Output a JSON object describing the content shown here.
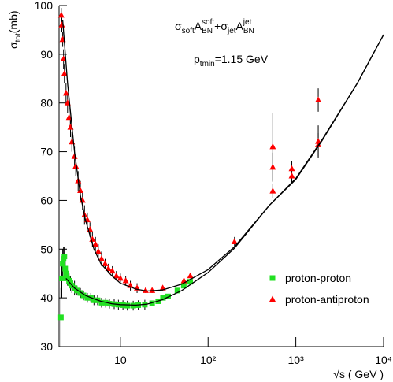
{
  "chart_data": {
    "type": "scatter",
    "xscale": "log",
    "annotations": {
      "formula": [
        "σ",
        "soft",
        "A",
        "BN",
        "soft",
        "+σ",
        "jet",
        "A",
        "BN",
        "jet"
      ],
      "ptmin": [
        "p",
        "tmin",
        "=1.15 GeV"
      ]
    },
    "ylabel": [
      "σ",
      "tot",
      "(mb)"
    ],
    "xlabel": "√s ( GeV )",
    "xlim": [
      2,
      10000
    ],
    "ylim": [
      30,
      100
    ],
    "xticks": [
      10,
      {
        "value": 100,
        "label": "10²"
      },
      {
        "value": 1000,
        "label": "10³"
      },
      {
        "value": 10000,
        "label": "10⁴"
      }
    ],
    "yticks": [
      30,
      40,
      50,
      60,
      70,
      80,
      90,
      100
    ],
    "legend": "lower right",
    "series": [
      {
        "name": "proton-proton",
        "color": "#22e022",
        "marker": "square",
        "x": [
          2.1,
          2.15,
          2.2,
          2.25,
          2.3,
          2.35,
          2.4,
          2.5,
          2.6,
          2.7,
          2.8,
          3.0,
          3.2,
          3.5,
          3.8,
          4.2,
          4.6,
          5.0,
          5.5,
          6.1,
          6.8,
          7.5,
          8.5,
          9.5,
          10.7,
          12,
          14,
          16,
          19,
          23,
          27,
          30.6,
          35,
          44.7,
          52.8,
          62.5
        ],
        "values": [
          36,
          44,
          47,
          48,
          48.5,
          46,
          45,
          44,
          43.5,
          43,
          42.5,
          42,
          41.5,
          41,
          40.5,
          40,
          40,
          39.5,
          39.5,
          39,
          39,
          38.8,
          38.7,
          38.6,
          38.5,
          38.4,
          38.4,
          38.5,
          38.6,
          38.9,
          39.3,
          40,
          40.3,
          41.5,
          42.5,
          43.3
        ],
        "errors": [
          6,
          4,
          3,
          2.5,
          2,
          2,
          1.5,
          1.5,
          1.5,
          1.5,
          1.5,
          1.5,
          1,
          1,
          1,
          1,
          1,
          1,
          1,
          1,
          1,
          1,
          1,
          1,
          1,
          1,
          1,
          1,
          1,
          0.5,
          0.5,
          0.5,
          0.5,
          0.5,
          0.5,
          0.5
        ]
      },
      {
        "name": "proton-antiproton",
        "color": "#ff0000",
        "marker": "triangle",
        "x": [
          2.12,
          2.15,
          2.2,
          2.25,
          2.3,
          2.4,
          2.5,
          2.6,
          2.7,
          2.8,
          3.0,
          3.1,
          3.3,
          3.5,
          3.7,
          3.9,
          4.2,
          4.5,
          4.8,
          5.2,
          5.6,
          6.1,
          6.7,
          7.3,
          8.1,
          9,
          10,
          11.5,
          13,
          15.5,
          19.4,
          23,
          30.4,
          53,
          62.7,
          200,
          546,
          546,
          546,
          900,
          900,
          1800,
          1800,
          1800
        ],
        "values": [
          98,
          96,
          93,
          89,
          86,
          82,
          80,
          77,
          75,
          72,
          69,
          67,
          64,
          62,
          60,
          57,
          56,
          54,
          52,
          51,
          49.5,
          48,
          47,
          46,
          45.5,
          44.5,
          44,
          43.5,
          42.5,
          42,
          41.5,
          41.5,
          42,
          43.5,
          44.5,
          51.5,
          61.9,
          66.8,
          71,
          65,
          66.5,
          71.4,
          72.1,
          80.6
        ],
        "errors": [
          1.5,
          1.5,
          1.5,
          2,
          2,
          2,
          2,
          2,
          2,
          2,
          2,
          2,
          2,
          2,
          2,
          2,
          1.5,
          1.5,
          1.5,
          1.5,
          1.5,
          1.5,
          1,
          1,
          1,
          1,
          1,
          1,
          1,
          1,
          0.5,
          0.5,
          0.5,
          0.5,
          0.5,
          1,
          1.5,
          3,
          7,
          1.5,
          1.5,
          2.4,
          3.3,
          2.4
        ]
      }
    ],
    "curves": [
      {
        "color": "#000000",
        "x": [
          2.2,
          2.5,
          3,
          3.5,
          4,
          5,
          6,
          8,
          10,
          15,
          20,
          30,
          50,
          100,
          200,
          500,
          1000,
          2000,
          5000,
          10000
        ],
        "values": [
          97,
          84,
          70,
          61,
          56,
          50,
          47,
          44.5,
          43,
          41.8,
          41.4,
          41.6,
          42.8,
          45.8,
          50.5,
          59,
          64.5,
          72.5,
          84,
          94
        ]
      },
      {
        "color": "#000000",
        "x": [
          2.4,
          3,
          4,
          5,
          6,
          8,
          10,
          15,
          20,
          30,
          50,
          100,
          200,
          500,
          1000,
          2000,
          5000,
          10000
        ],
        "values": [
          44,
          42,
          40.5,
          39.8,
          39.3,
          38.8,
          38.6,
          38.5,
          38.7,
          39.6,
          41.5,
          45.2,
          50.2,
          59,
          64.3,
          72.3,
          84,
          94
        ]
      }
    ]
  }
}
